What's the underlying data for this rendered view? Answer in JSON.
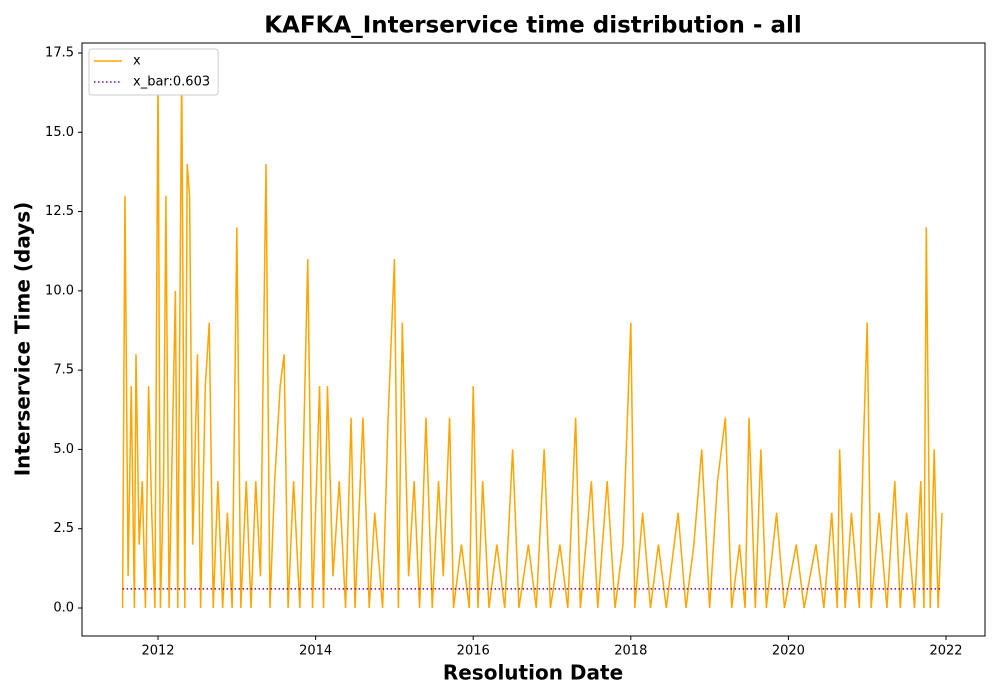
{
  "chart_data": {
    "type": "line",
    "title": "KAFKA_Interservice time distribution - all",
    "xlabel": "Resolution Date",
    "ylabel": "Interservice Time (days)",
    "xlim": [
      2011.035,
      2022.495
    ],
    "ylim": [
      -0.883,
      17.815
    ],
    "xticks": [
      2012,
      2014,
      2016,
      2018,
      2020,
      2022
    ],
    "yticks": [
      {
        "value": 0,
        "label": "0.0"
      },
      {
        "value": 2.5,
        "label": "2.5"
      },
      {
        "value": 5,
        "label": "5.0"
      },
      {
        "value": 7.5,
        "label": "7.5"
      },
      {
        "value": 10,
        "label": "10.0"
      },
      {
        "value": 12.5,
        "label": "12.5"
      },
      {
        "value": 15,
        "label": "15.0"
      },
      {
        "value": 17.5,
        "label": "17.5"
      }
    ],
    "grid": false,
    "legend": "upper-left",
    "series": [
      {
        "name": "x",
        "color": "#ffa500",
        "style": "solid",
        "x": [
          2011.55,
          2011.58,
          2011.62,
          2011.66,
          2011.7,
          2011.72,
          2011.76,
          2011.8,
          2011.84,
          2011.88,
          2011.92,
          2011.96,
          2012.0,
          2012.03,
          2012.07,
          2012.1,
          2012.14,
          2012.18,
          2012.22,
          2012.25,
          2012.3,
          2012.34,
          2012.37,
          2012.4,
          2012.44,
          2012.5,
          2012.54,
          2012.6,
          2012.65,
          2012.7,
          2012.76,
          2012.82,
          2012.88,
          2012.94,
          2013.0,
          2013.05,
          2013.12,
          2013.18,
          2013.24,
          2013.3,
          2013.37,
          2013.42,
          2013.48,
          2013.55,
          2013.6,
          2013.65,
          2013.72,
          2013.8,
          2013.9,
          2013.96,
          2014.05,
          2014.1,
          2014.15,
          2014.22,
          2014.3,
          2014.38,
          2014.45,
          2014.5,
          2014.6,
          2014.68,
          2014.75,
          2014.85,
          2014.92,
          2015.0,
          2015.05,
          2015.1,
          2015.18,
          2015.25,
          2015.32,
          2015.4,
          2015.48,
          2015.56,
          2015.62,
          2015.7,
          2015.75,
          2015.85,
          2015.95,
          2016.0,
          2016.06,
          2016.12,
          2016.2,
          2016.3,
          2016.4,
          2016.5,
          2016.58,
          2016.7,
          2016.8,
          2016.9,
          2016.98,
          2017.1,
          2017.2,
          2017.3,
          2017.36,
          2017.5,
          2017.58,
          2017.7,
          2017.8,
          2017.9,
          2018.0,
          2018.05,
          2018.15,
          2018.25,
          2018.35,
          2018.45,
          2018.6,
          2018.7,
          2018.8,
          2018.9,
          2019.0,
          2019.1,
          2019.2,
          2019.28,
          2019.38,
          2019.45,
          2019.5,
          2019.58,
          2019.65,
          2019.72,
          2019.85,
          2019.95,
          2020.1,
          2020.2,
          2020.35,
          2020.45,
          2020.55,
          2020.62,
          2020.65,
          2020.72,
          2020.8,
          2020.9,
          2020.95,
          2021.0,
          2021.05,
          2021.15,
          2021.25,
          2021.35,
          2021.42,
          2021.5,
          2021.6,
          2021.68,
          2021.72,
          2021.75,
          2021.8,
          2021.85,
          2021.9,
          2021.95
        ],
        "values": [
          0,
          13,
          1,
          7,
          0,
          8,
          2,
          4,
          0,
          7,
          3,
          0,
          17,
          0,
          4,
          13,
          0,
          5,
          10,
          0,
          17,
          0,
          14,
          13,
          2,
          8,
          0,
          7,
          9,
          0,
          4,
          0,
          3,
          0,
          12,
          0,
          4,
          0,
          4,
          1,
          14,
          0,
          4,
          7,
          8,
          0,
          4,
          0,
          11,
          0,
          7,
          0,
          7,
          1,
          4,
          0,
          6,
          0,
          6,
          0,
          3,
          0,
          6,
          11,
          0,
          9,
          1,
          4,
          0,
          6,
          0,
          4,
          1,
          6,
          0,
          2,
          0,
          7,
          0,
          4,
          0,
          2,
          0,
          5,
          0,
          2,
          0,
          5,
          0,
          2,
          0,
          6,
          0,
          4,
          0,
          4,
          0,
          2,
          9,
          0,
          3,
          0,
          2,
          0,
          3,
          0,
          2,
          5,
          0,
          4,
          6,
          0,
          2,
          0,
          6,
          0,
          5,
          0,
          3,
          0,
          2,
          0,
          2,
          0,
          3,
          0,
          5,
          0,
          3,
          0,
          5,
          9,
          0,
          3,
          0,
          4,
          0,
          3,
          0,
          4,
          0,
          12,
          0,
          5,
          0,
          3
        ]
      },
      {
        "name": "x_bar:0.603",
        "color": "#800080",
        "style": "dotted",
        "x": [
          2011.55,
          2021.95
        ],
        "values": [
          0.603,
          0.603
        ]
      }
    ]
  }
}
